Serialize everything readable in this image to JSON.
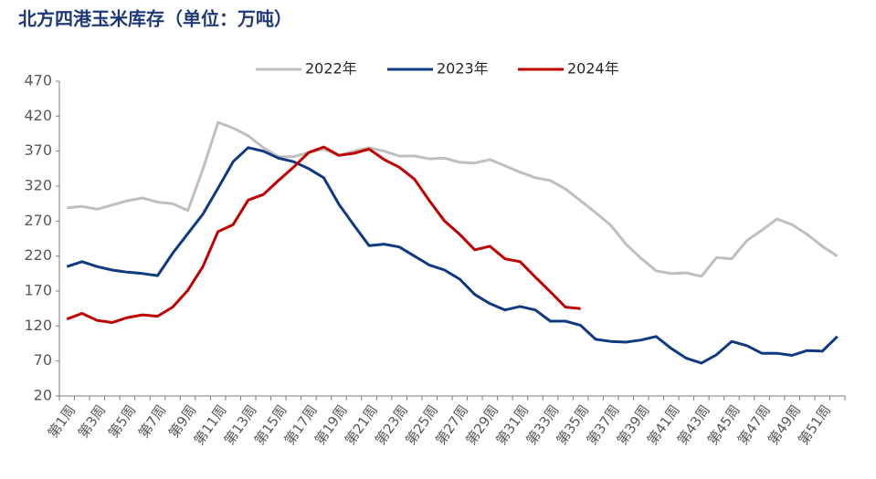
{
  "chart_data": {
    "type": "line",
    "title": "北方四港玉米库存（单位：万吨）",
    "categories": [
      "第1周",
      null,
      "第3周",
      null,
      "第5周",
      null,
      "第7周",
      null,
      "第9周",
      null,
      "第11周",
      null,
      "第13周",
      null,
      "第15周",
      null,
      "第17周",
      null,
      "第19周",
      null,
      "第21周",
      null,
      "第23周",
      null,
      "第25周",
      null,
      "第27周",
      null,
      "第29周",
      null,
      "第31周",
      null,
      "第33周",
      null,
      "第35周",
      null,
      "第37周",
      null,
      "第39周",
      null,
      "第41周",
      null,
      "第43周",
      null,
      "第45周",
      null,
      "第47周",
      null,
      "第49周",
      null,
      "第51周",
      null
    ],
    "series": [
      {
        "name": "2022年",
        "color": "#bfbfbf",
        "values": [
          289,
          291,
          287,
          293,
          299,
          303,
          297,
          295,
          285,
          344,
          411,
          403,
          392,
          375,
          362,
          362,
          368,
          373,
          364,
          370,
          375,
          370,
          363,
          363,
          359,
          360,
          354,
          353,
          358,
          349,
          340,
          332,
          328,
          316,
          299,
          282,
          264,
          237,
          217,
          199,
          195,
          196,
          191,
          218,
          216,
          242,
          257,
          273,
          265,
          251,
          234,
          220
        ]
      },
      {
        "name": "2023年",
        "color": "#0e3a82",
        "values": [
          205,
          212,
          205,
          200,
          197,
          195,
          192,
          224,
          252,
          280,
          317,
          355,
          375,
          370,
          360,
          355,
          345,
          332,
          294,
          264,
          235,
          237,
          233,
          220,
          207,
          200,
          187,
          165,
          152,
          143,
          148,
          143,
          127,
          127,
          121,
          101,
          98,
          97,
          100,
          105,
          88,
          74,
          67,
          79,
          98,
          92,
          81,
          81,
          78,
          85,
          84,
          105
        ]
      },
      {
        "name": "2024年",
        "color": "#c00000",
        "values": [
          130,
          138,
          128,
          125,
          132,
          136,
          134,
          147,
          171,
          205,
          255,
          265,
          300,
          308,
          328,
          347,
          368,
          376,
          364,
          367,
          373,
          358,
          347,
          330,
          299,
          270,
          251,
          229,
          234,
          216,
          212,
          190,
          169,
          147,
          145,
          null,
          null,
          null,
          null,
          null,
          null,
          null,
          null,
          null,
          null,
          null,
          null,
          null,
          null,
          null,
          null,
          null
        ]
      }
    ],
    "ylim": [
      20,
      470
    ],
    "yticks": [
      20,
      70,
      120,
      170,
      220,
      270,
      320,
      370,
      420,
      470
    ],
    "legend": "top"
  }
}
